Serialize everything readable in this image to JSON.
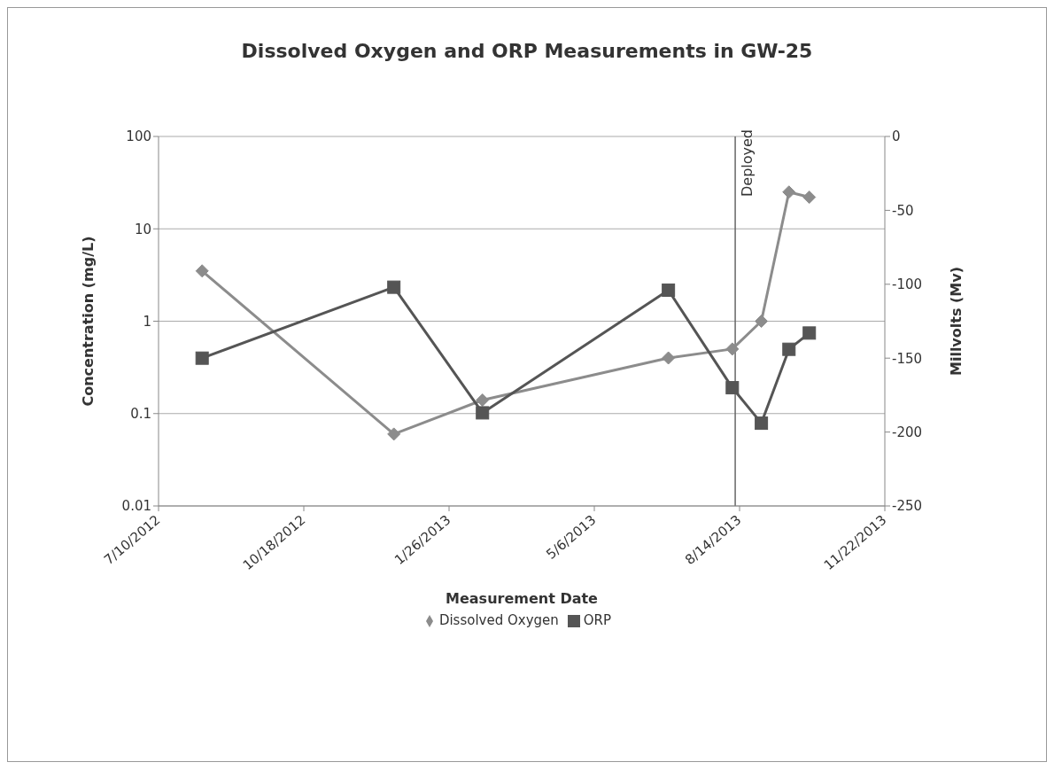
{
  "chart_data": {
    "type": "line",
    "title": "Dissolved Oxygen and ORP Measurements in GW-25",
    "xlabel": "Measurement Date",
    "ylabel": "Concentration (mg/L)",
    "y2label": "Millvolts (Mv)",
    "log": "y",
    "grid": "y",
    "legend": "bottom",
    "xlim": [
      "2012-07-10",
      "2013-11-22"
    ],
    "xticks": [
      {
        "value": "2012-07-10",
        "label": "7/10/2012"
      },
      {
        "value": "2012-10-18",
        "label": "10/18/2012"
      },
      {
        "value": "2013-01-26",
        "label": "1/26/2013"
      },
      {
        "value": "2013-05-06",
        "label": "5/6/2013"
      },
      {
        "value": "2013-08-14",
        "label": "8/14/2013"
      },
      {
        "value": "2013-11-22",
        "label": "11/22/2013"
      }
    ],
    "ylim": [
      0.01,
      100
    ],
    "yticks": [
      0.01,
      0.1,
      1,
      10,
      100
    ],
    "y2lim": [
      -250,
      0
    ],
    "y2ticks": [
      -250,
      -200,
      -150,
      -100,
      -50,
      0
    ],
    "series": [
      {
        "name": "Dissolved Oxygen",
        "color": "#8c8c8c",
        "marker": "diamond",
        "x": [
          "2012-08-09",
          "2012-12-19",
          "2013-02-18",
          "2013-06-26",
          "2013-08-09",
          "2013-08-29",
          "2013-09-17",
          "2013-10-01"
        ],
        "values": [
          3.5,
          0.06,
          0.14,
          0.4,
          0.5,
          1.0,
          25,
          22
        ]
      },
      {
        "name": "ORP",
        "color": "#555555",
        "marker": "square",
        "axis": "y2",
        "x": [
          "2012-08-09",
          "2012-12-19",
          "2013-02-18",
          "2013-06-26",
          "2013-08-09",
          "2013-08-29",
          "2013-09-17",
          "2013-10-01"
        ],
        "values": [
          -150,
          -102,
          -187,
          -104,
          -170,
          -194,
          -144,
          -133
        ]
      }
    ],
    "ref_lines": [
      {
        "axis": "x",
        "value": "2013-08-11",
        "label": "Deployed",
        "color": "#666666"
      }
    ]
  }
}
